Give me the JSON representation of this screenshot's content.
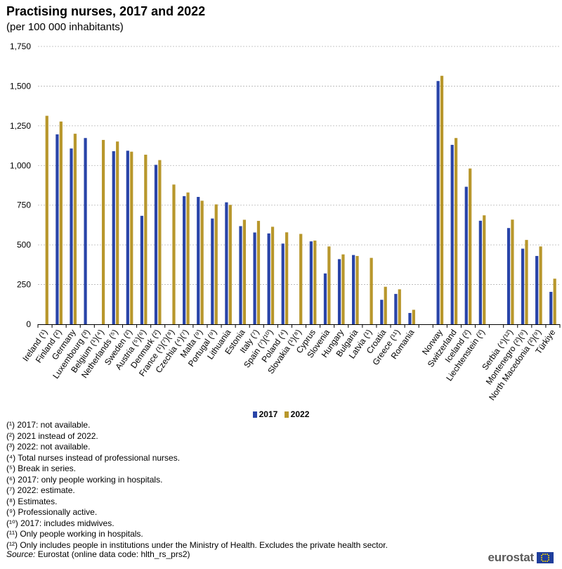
{
  "header": {
    "title": "Practising nurses, 2017 and 2022",
    "subtitle": "(per 100 000 inhabitants)"
  },
  "chart_data": {
    "type": "bar",
    "title": "Practising nurses, 2017 and 2022",
    "subtitle": "(per 100 000 inhabitants)",
    "xlabel": "",
    "ylabel": "",
    "ylim": [
      0,
      1750
    ],
    "yticks": [
      "0",
      "250",
      "500",
      "750",
      "1,000",
      "1,250",
      "1,500",
      "1,750"
    ],
    "grid": true,
    "legend_position": "bottom",
    "colors": {
      "2017": "#2944a8",
      "2022": "#b8972c"
    },
    "groups": [
      {
        "name": "EU",
        "categories": [
          "Ireland (¹)",
          "Finland (²)",
          "Germany",
          "Luxembourg (³)",
          "Belgium (¹)(⁴)",
          "Netherlands (⁵)",
          "Sweden (²)",
          "Austria (⁵)(⁶)",
          "Denmark (²)",
          "France (¹)(⁷)(⁸)",
          "Czechia (⁴)(⁷)",
          "Malta (⁹)",
          "Portugal (⁹)",
          "Lithuania",
          "Estonia",
          "Italy (⁷)",
          "Spain (⁷)(¹⁰)",
          "Poland (⁴)",
          "Slovakia (¹)(⁸)",
          "Cyprus",
          "Slovenia",
          "Hungary",
          "Bulgaria",
          "Latvia (¹)",
          "Croatia",
          "Greece (¹¹)",
          "Romania"
        ]
      },
      {
        "name": "EFTA",
        "categories": [
          "Norway",
          "Switzerland",
          "Iceland (²)",
          "Liechtenstein (²)"
        ]
      },
      {
        "name": "Candidates",
        "categories": [
          "Serbia (⁴)(¹²)",
          "Montenegro (²)(⁹)",
          "North Macedonia (²)(⁹)",
          "Türkiye"
        ]
      }
    ],
    "categories": [
      "Ireland (¹)",
      "Finland (²)",
      "Germany",
      "Luxembourg (³)",
      "Belgium (¹)(⁴)",
      "Netherlands (⁵)",
      "Sweden (²)",
      "Austria (⁵)(⁶)",
      "Denmark (²)",
      "France (¹)(⁷)(⁸)",
      "Czechia (⁴)(⁷)",
      "Malta (⁹)",
      "Portugal (⁹)",
      "Lithuania",
      "Estonia",
      "Italy (⁷)",
      "Spain (⁷)(¹⁰)",
      "Poland (⁴)",
      "Slovakia (¹)(⁸)",
      "Cyprus",
      "Slovenia",
      "Hungary",
      "Bulgaria",
      "Latvia (¹)",
      "Croatia",
      "Greece (¹¹)",
      "Romania",
      "Norway",
      "Switzerland",
      "Iceland (²)",
      "Liechtenstein (²)",
      "Serbia (⁴)(¹²)",
      "Montenegro (²)(⁹)",
      "North Macedonia (²)(⁹)",
      "Türkiye"
    ],
    "series": [
      {
        "name": "2017",
        "values": [
          null,
          1196,
          1107,
          1173,
          null,
          1090,
          1093,
          683,
          1004,
          null,
          807,
          802,
          666,
          768,
          618,
          578,
          572,
          508,
          null,
          522,
          320,
          410,
          436,
          null,
          154,
          191,
          71,
          1532,
          1130,
          866,
          652,
          606,
          476,
          430,
          204
        ]
      },
      {
        "name": "2022",
        "values": [
          1313,
          1277,
          1200,
          null,
          1161,
          1151,
          1087,
          1068,
          1034,
          880,
          830,
          778,
          755,
          752,
          658,
          651,
          614,
          579,
          569,
          527,
          490,
          440,
          430,
          418,
          236,
          220,
          91,
          1565,
          1173,
          981,
          686,
          659,
          531,
          490,
          287
        ]
      }
    ]
  },
  "legend": {
    "series_2017": "2017",
    "series_2022": "2022"
  },
  "footnotes": [
    "(¹) 2017: not available.",
    "(²) 2021 instead of 2022.",
    "(³) 2022: not available.",
    "(⁴) Total nurses instead of professional nurses.",
    "(⁵) Break in series.",
    "(⁶) 2017: only people working in hospitals.",
    "(⁷) 2022: estimate.",
    "(⁸) Estimates.",
    "(⁹) Professionally active.",
    "(¹⁰) 2017: includes midwives.",
    "(¹¹) Only people working in hospitals.",
    "(¹²) Only includes people in institutions under the Ministry of Health. Excludes the private health sector."
  ],
  "source": {
    "label": "Source:",
    "text": " Eurostat (online data code: hlth_rs_prs2)"
  },
  "branding": {
    "logo_text": "eurostat",
    "flag_colors": {
      "field": "#1f3e9c",
      "stars": "#f5d300"
    }
  }
}
